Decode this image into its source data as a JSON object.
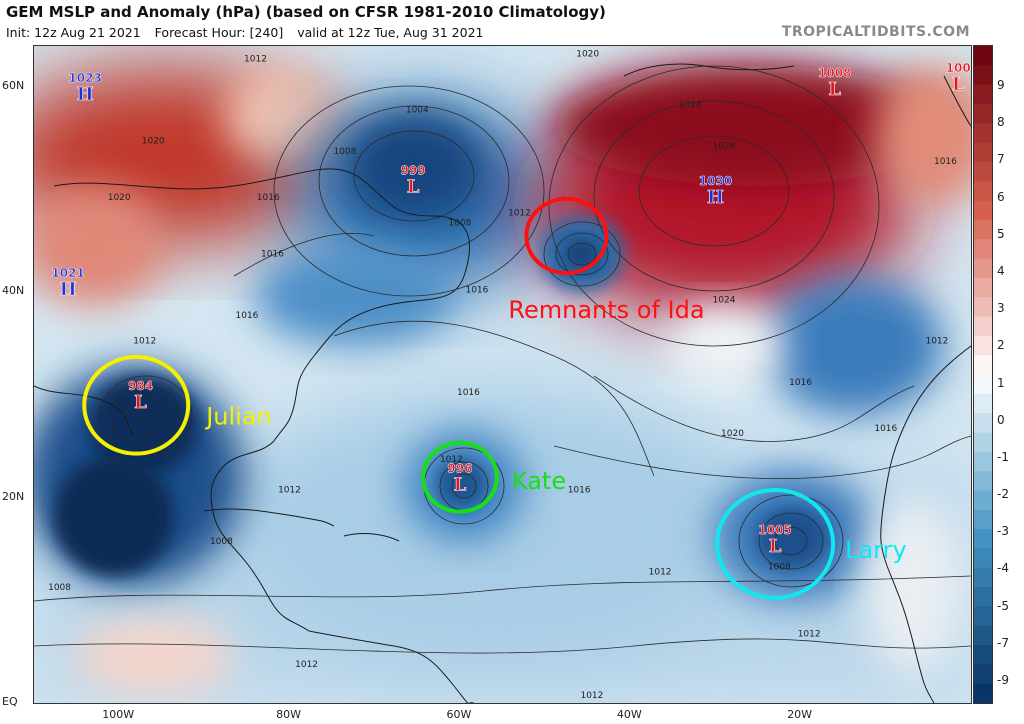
{
  "header": {
    "title": "GEM MSLP and Anomaly (hPa) (based on CFSR 1981-2010 Climatology)",
    "init": "Init: 12z Aug 21 2021",
    "forecast_hour": "Forecast Hour: [240]",
    "valid": "valid at 12z Tue, Aug 31 2021",
    "brand": "TROPICALTIDBITS.COM"
  },
  "map": {
    "lon_range": [
      -110,
      0
    ],
    "lat_range": [
      0,
      64
    ],
    "lat_labels": [
      {
        "text": "60N",
        "lat": 60
      },
      {
        "text": "40N",
        "lat": 40
      },
      {
        "text": "20N",
        "lat": 20
      },
      {
        "text": "EQ",
        "lat": 0
      }
    ],
    "lon_labels": [
      {
        "text": "100W",
        "lon": -100
      },
      {
        "text": "80W",
        "lon": -80
      },
      {
        "text": "60W",
        "lon": -60
      },
      {
        "text": "40W",
        "lon": -40
      },
      {
        "text": "20W",
        "lon": -20
      }
    ],
    "pressure_centers": [
      {
        "type": "H",
        "value": "1023",
        "lon": -104,
        "lat": 59.5
      },
      {
        "type": "H",
        "value": "1021",
        "lon": -106,
        "lat": 40.5
      },
      {
        "type": "L",
        "value": "999",
        "lon": -65.5,
        "lat": 50.5
      },
      {
        "type": "H",
        "value": "1030",
        "lon": -30,
        "lat": 49.5
      },
      {
        "type": "L",
        "value": "1008",
        "lon": -16,
        "lat": 60
      },
      {
        "type": "L",
        "value": "100",
        "lon": -1.5,
        "lat": 60.5
      },
      {
        "type": "L",
        "value": "984",
        "lon": -97.5,
        "lat": 29.5
      },
      {
        "type": "L",
        "value": "996",
        "lon": -60,
        "lat": 21.5
      },
      {
        "type": "L",
        "value": "1005",
        "lon": -23,
        "lat": 15.5
      }
    ],
    "isobar_labels": [
      {
        "text": "1012",
        "lon": -84,
        "lat": 62.5
      },
      {
        "text": "1020",
        "lon": -96,
        "lat": 54.5
      },
      {
        "text": "1020",
        "lon": -100,
        "lat": 49
      },
      {
        "text": "1016",
        "lon": -82.5,
        "lat": 49
      },
      {
        "text": "1004",
        "lon": -65,
        "lat": 57.5
      },
      {
        "text": "1008",
        "lon": -73.5,
        "lat": 53.5
      },
      {
        "text": "1008",
        "lon": -60,
        "lat": 46.5
      },
      {
        "text": "1012",
        "lon": -53,
        "lat": 47.5
      },
      {
        "text": "1016",
        "lon": -82,
        "lat": 43.5
      },
      {
        "text": "1016",
        "lon": -58,
        "lat": 40
      },
      {
        "text": "1016",
        "lon": -85,
        "lat": 37.5
      },
      {
        "text": "1012",
        "lon": -97,
        "lat": 35
      },
      {
        "text": "1020",
        "lon": -45,
        "lat": 63
      },
      {
        "text": "1024",
        "lon": -33,
        "lat": 58
      },
      {
        "text": "1028",
        "lon": -29,
        "lat": 54
      },
      {
        "text": "1024",
        "lon": -29,
        "lat": 39
      },
      {
        "text": "1016",
        "lon": -3,
        "lat": 52.5
      },
      {
        "text": "1012",
        "lon": -4,
        "lat": 35
      },
      {
        "text": "1016",
        "lon": -20,
        "lat": 31
      },
      {
        "text": "1016",
        "lon": -59,
        "lat": 30
      },
      {
        "text": "1020",
        "lon": -28,
        "lat": 26
      },
      {
        "text": "1016",
        "lon": -10,
        "lat": 26.5
      },
      {
        "text": "1016",
        "lon": -46,
        "lat": 20.5
      },
      {
        "text": "1012",
        "lon": -61,
        "lat": 23.5
      },
      {
        "text": "1012",
        "lon": -80,
        "lat": 20.5
      },
      {
        "text": "1008",
        "lon": -88,
        "lat": 15.5
      },
      {
        "text": "1008",
        "lon": -107,
        "lat": 11
      },
      {
        "text": "1012",
        "lon": -36.5,
        "lat": 12.5
      },
      {
        "text": "1008",
        "lon": -22.5,
        "lat": 13
      },
      {
        "text": "1012",
        "lon": -19,
        "lat": 6.5
      },
      {
        "text": "1012",
        "lon": -78,
        "lat": 3.5
      },
      {
        "text": "1012",
        "lon": -44.5,
        "lat": 0.5
      }
    ],
    "storm_annotations": [
      {
        "label": "Remnants of Ida",
        "lon": -47.5,
        "lat": 45.5,
        "color": "#ff1010"
      },
      {
        "label": "Julian",
        "lon": -98,
        "lat": 29,
        "color": "#f5f000"
      },
      {
        "label": "Kate",
        "lon": -60,
        "lat": 22,
        "color": "#18e018"
      },
      {
        "label": "Larry",
        "lon": -23,
        "lat": 15.5,
        "color": "#10e8f0"
      }
    ]
  },
  "colorbar": {
    "labels": [
      "9",
      "8",
      "7",
      "6",
      "5",
      "4",
      "3",
      "2",
      "1",
      "0",
      "-1",
      "-2",
      "-3",
      "-4",
      "-5",
      "-7",
      "-9"
    ],
    "colors": {
      "positive_max": "#67000d",
      "positive_mid": "#d6604d",
      "neutral": "#ffffff",
      "negative_mid": "#4393c3",
      "negative_max": "#053061"
    }
  }
}
